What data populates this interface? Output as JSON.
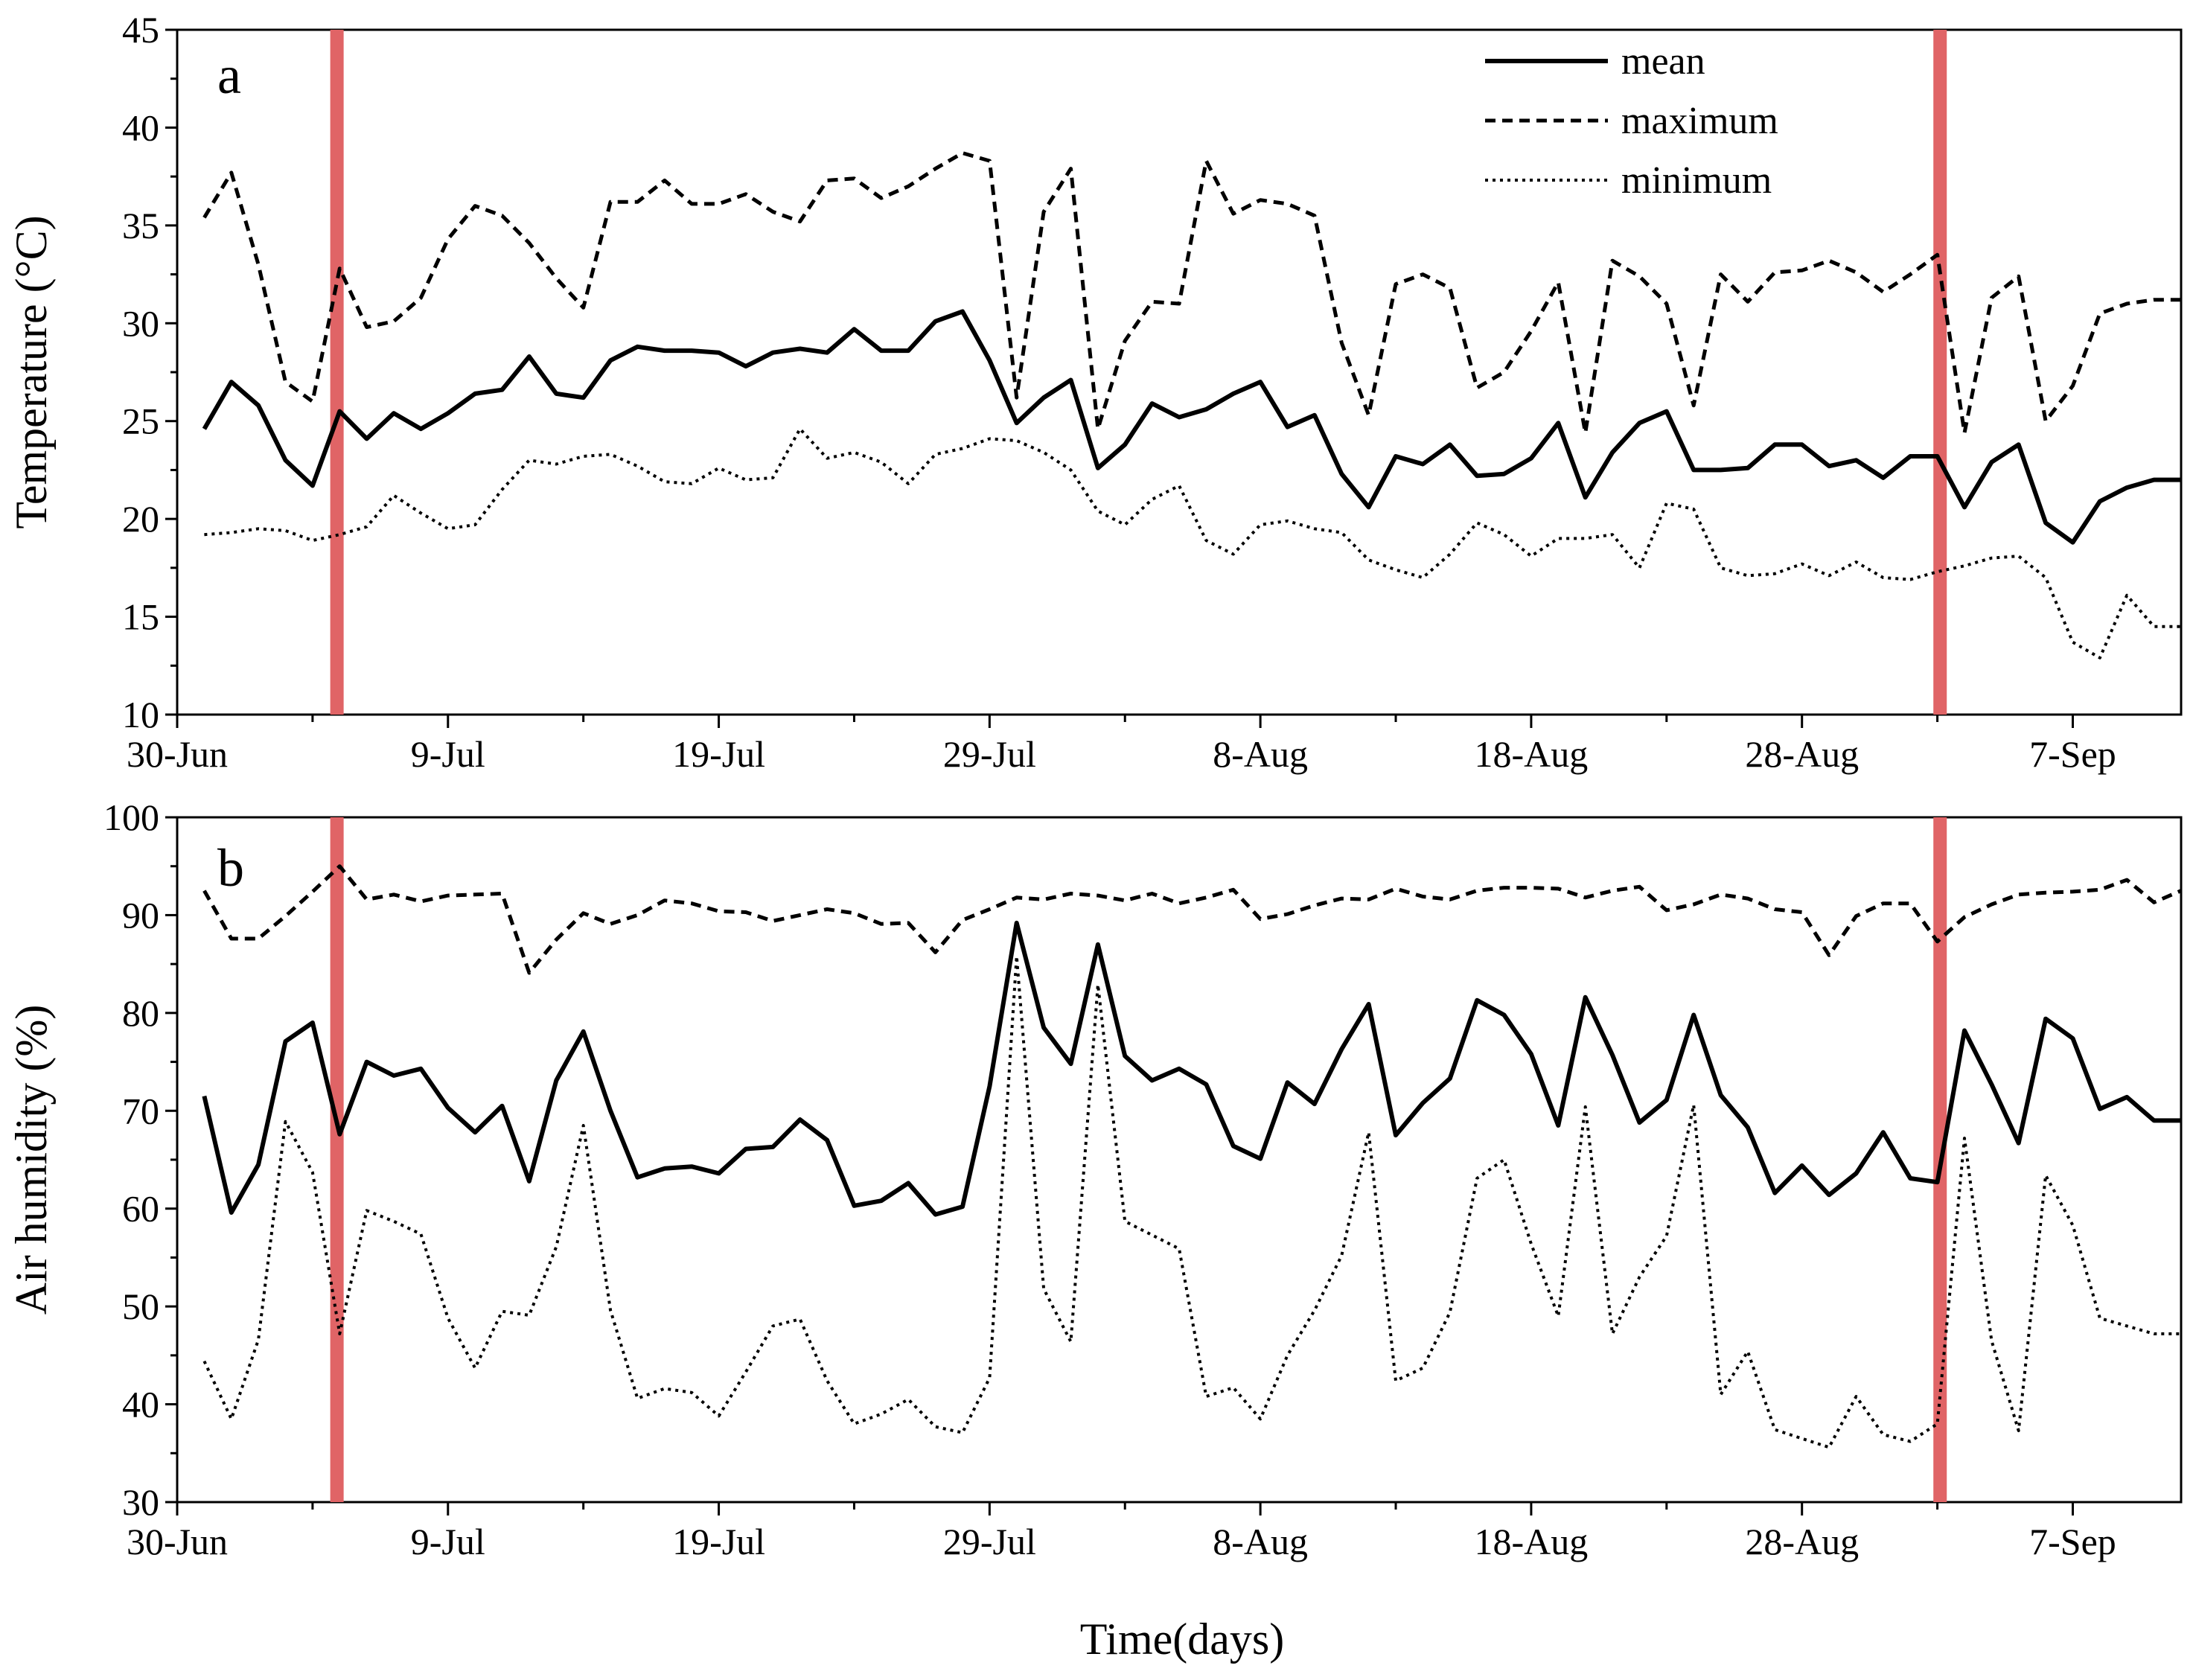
{
  "chart_data": [
    {
      "type": "line",
      "panel_label": "a",
      "ylabel": "Temperature (°C)",
      "xlabel": "",
      "ylim": [
        10,
        45
      ],
      "yticks": [
        "10",
        "15",
        "20",
        "25",
        "30",
        "35",
        "40",
        "45"
      ],
      "xlim": [
        0,
        74
      ],
      "xticks": [
        {
          "day": 0,
          "label": "30-Jun"
        },
        {
          "day": 10,
          "label": "9-Jul"
        },
        {
          "day": 20,
          "label": "19-Jul"
        },
        {
          "day": 30,
          "label": "29-Jul"
        },
        {
          "day": 40,
          "label": "8-Aug"
        },
        {
          "day": 50,
          "label": "18-Aug"
        },
        {
          "day": 60,
          "label": "28-Aug"
        },
        {
          "day": 70,
          "label": "7-Sep"
        }
      ],
      "markers": {
        "days": [
          5.9,
          65.1
        ],
        "color": "#e06466"
      },
      "x": [
        1,
        2,
        3,
        4,
        5,
        6,
        7,
        8,
        9,
        10,
        11,
        12,
        13,
        14,
        15,
        16,
        17,
        18,
        19,
        20,
        21,
        22,
        23,
        24,
        25,
        26,
        27,
        28,
        29,
        30,
        31,
        32,
        33,
        34,
        35,
        36,
        37,
        38,
        39,
        40,
        41,
        42,
        43,
        44,
        45,
        46,
        47,
        48,
        49,
        50,
        51,
        52,
        53,
        54,
        55,
        56,
        57,
        58,
        59,
        60,
        61,
        62,
        63,
        64,
        65,
        66,
        67,
        68,
        69,
        70,
        71,
        72,
        73,
        74
      ],
      "series": [
        {
          "name": "mean",
          "style": "solid",
          "values": [
            24.6,
            27.0,
            25.8,
            23.0,
            21.7,
            25.5,
            24.1,
            25.4,
            24.6,
            25.4,
            26.4,
            26.6,
            28.3,
            26.4,
            26.2,
            28.1,
            28.8,
            28.6,
            28.6,
            28.5,
            27.8,
            28.5,
            28.7,
            28.5,
            29.7,
            28.6,
            28.6,
            30.1,
            30.6,
            28.1,
            24.9,
            26.2,
            27.1,
            22.6,
            23.8,
            25.9,
            25.2,
            25.6,
            26.4,
            27.0,
            24.7,
            25.3,
            22.3,
            20.6,
            23.2,
            22.8,
            23.8,
            22.2,
            22.3,
            23.1,
            24.9,
            21.1,
            23.4,
            24.9,
            25.5,
            22.5,
            22.5,
            22.6,
            23.8,
            23.8,
            22.7,
            23.0,
            22.1,
            23.2,
            23.2,
            20.6,
            22.9,
            23.8,
            19.8,
            18.8,
            20.9,
            21.6,
            22.0,
            22.0
          ]
        },
        {
          "name": "maximum",
          "style": "dashed",
          "values": [
            35.4,
            37.7,
            33.0,
            27.0,
            26.0,
            32.8,
            29.8,
            30.1,
            31.3,
            34.3,
            36.0,
            35.5,
            34.1,
            32.3,
            30.8,
            36.2,
            36.2,
            37.3,
            36.1,
            36.1,
            36.6,
            35.7,
            35.2,
            37.3,
            37.4,
            36.4,
            37.0,
            37.9,
            38.7,
            38.3,
            26.2,
            35.7,
            37.9,
            24.6,
            29.1,
            31.1,
            31.0,
            38.3,
            35.6,
            36.3,
            36.1,
            35.5,
            29.0,
            25.3,
            32.0,
            32.5,
            31.8,
            26.7,
            27.5,
            29.6,
            32.1,
            24.4,
            33.2,
            32.4,
            31.0,
            25.8,
            32.5,
            31.1,
            32.6,
            32.7,
            33.2,
            32.6,
            31.6,
            32.5,
            33.5,
            24.4,
            31.3,
            32.4,
            25.0,
            26.8,
            30.5,
            31.0,
            31.2,
            31.2
          ]
        },
        {
          "name": "minimum",
          "style": "dotted",
          "values": [
            19.2,
            19.3,
            19.5,
            19.4,
            18.9,
            19.2,
            19.6,
            21.2,
            20.3,
            19.5,
            19.7,
            21.5,
            23.0,
            22.8,
            23.2,
            23.3,
            22.7,
            21.9,
            21.8,
            22.6,
            22.0,
            22.1,
            24.6,
            23.1,
            23.4,
            22.9,
            21.8,
            23.3,
            23.6,
            24.1,
            24.0,
            23.4,
            22.5,
            20.4,
            19.7,
            21.0,
            21.7,
            18.9,
            18.2,
            19.7,
            19.9,
            19.5,
            19.3,
            17.9,
            17.4,
            17.0,
            18.2,
            19.8,
            19.2,
            18.1,
            19.0,
            19.0,
            19.2,
            17.5,
            20.8,
            20.5,
            17.5,
            17.1,
            17.2,
            17.7,
            17.1,
            17.8,
            17.0,
            16.9,
            17.3,
            17.6,
            18.0,
            18.1,
            17.0,
            13.7,
            12.9,
            16.1,
            14.5,
            14.5
          ]
        }
      ],
      "legend": {
        "placement": "top-right",
        "entries": [
          {
            "label": "mean",
            "style": "solid"
          },
          {
            "label": "maximum",
            "style": "dashed"
          },
          {
            "label": "minimum",
            "style": "dotted"
          }
        ]
      }
    },
    {
      "type": "line",
      "panel_label": "b",
      "ylabel": "Air humidity (%)",
      "xlabel": "Time(days)",
      "ylim": [
        30,
        100
      ],
      "yticks": [
        "30",
        "40",
        "50",
        "60",
        "70",
        "80",
        "90",
        "100"
      ],
      "xlim": [
        0,
        74
      ],
      "xticks": [
        {
          "day": 0,
          "label": "30-Jun"
        },
        {
          "day": 10,
          "label": "9-Jul"
        },
        {
          "day": 20,
          "label": "19-Jul"
        },
        {
          "day": 30,
          "label": "29-Jul"
        },
        {
          "day": 40,
          "label": "8-Aug"
        },
        {
          "day": 50,
          "label": "18-Aug"
        },
        {
          "day": 60,
          "label": "28-Aug"
        },
        {
          "day": 70,
          "label": "7-Sep"
        }
      ],
      "markers": {
        "days": [
          5.9,
          65.1
        ],
        "color": "#e06466"
      },
      "x": [
        1,
        2,
        3,
        4,
        5,
        6,
        7,
        8,
        9,
        10,
        11,
        12,
        13,
        14,
        15,
        16,
        17,
        18,
        19,
        20,
        21,
        22,
        23,
        24,
        25,
        26,
        27,
        28,
        29,
        30,
        31,
        32,
        33,
        34,
        35,
        36,
        37,
        38,
        39,
        40,
        41,
        42,
        43,
        44,
        45,
        46,
        47,
        48,
        49,
        50,
        51,
        52,
        53,
        54,
        55,
        56,
        57,
        58,
        59,
        60,
        61,
        62,
        63,
        64,
        65,
        66,
        67,
        68,
        69,
        70,
        71,
        72,
        73,
        74
      ],
      "series": [
        {
          "name": "mean",
          "style": "solid",
          "values": [
            71.5,
            59.6,
            64.5,
            77.1,
            79.0,
            67.6,
            75.0,
            73.6,
            74.3,
            70.3,
            67.8,
            70.5,
            62.8,
            73.1,
            78.1,
            70.0,
            63.2,
            64.1,
            64.3,
            63.6,
            66.1,
            66.3,
            69.1,
            67.0,
            60.3,
            60.8,
            62.6,
            59.4,
            60.2,
            72.5,
            89.2,
            78.5,
            74.8,
            87.0,
            75.6,
            73.1,
            74.3,
            72.7,
            66.4,
            65.1,
            72.9,
            70.7,
            76.3,
            80.9,
            67.5,
            70.8,
            73.3,
            81.3,
            79.8,
            75.8,
            68.5,
            81.6,
            75.7,
            68.8,
            71.1,
            79.8,
            71.6,
            68.3,
            61.6,
            64.4,
            61.4,
            63.6,
            67.8,
            63.1,
            62.7,
            78.2,
            72.7,
            66.7,
            79.4,
            77.4,
            70.2,
            71.4,
            69.0,
            69.0
          ]
        },
        {
          "name": "maximum",
          "style": "dashed",
          "values": [
            92.5,
            87.6,
            87.6,
            89.9,
            92.4,
            95.0,
            91.6,
            92.1,
            91.4,
            92.0,
            92.1,
            92.2,
            84.1,
            87.5,
            90.2,
            89.1,
            90.0,
            91.5,
            91.2,
            90.4,
            90.3,
            89.4,
            90.0,
            90.6,
            90.2,
            89.1,
            89.2,
            86.2,
            89.5,
            90.6,
            91.8,
            91.6,
            92.2,
            92.0,
            91.5,
            92.2,
            91.2,
            91.8,
            92.6,
            89.6,
            90.1,
            91.0,
            91.7,
            91.6,
            92.7,
            91.9,
            91.6,
            92.5,
            92.8,
            92.8,
            92.7,
            91.8,
            92.5,
            92.9,
            90.5,
            91.1,
            92.1,
            91.7,
            90.6,
            90.3,
            85.9,
            89.9,
            91.2,
            91.2,
            87.3,
            89.8,
            91.1,
            92.1,
            92.3,
            92.4,
            92.6,
            93.6,
            91.3,
            92.5
          ]
        },
        {
          "name": "minimum",
          "style": "dotted",
          "values": [
            44.4,
            38.5,
            46.6,
            68.9,
            63.7,
            47.2,
            59.8,
            58.7,
            57.4,
            48.8,
            43.7,
            49.5,
            49.1,
            56.1,
            68.5,
            49.6,
            40.6,
            41.6,
            41.2,
            38.8,
            43.3,
            48.0,
            48.7,
            42.4,
            38.0,
            39.0,
            40.5,
            37.7,
            37.1,
            42.7,
            85.8,
            51.8,
            46.4,
            82.9,
            58.7,
            57.3,
            55.9,
            40.8,
            41.7,
            38.5,
            45.0,
            49.6,
            55.2,
            67.8,
            42.4,
            43.7,
            49.4,
            63.1,
            65.0,
            56.4,
            49.0,
            70.4,
            47.2,
            53.0,
            57.2,
            70.6,
            41.0,
            45.4,
            37.4,
            36.5,
            35.6,
            40.8,
            36.9,
            36.2,
            38.0,
            67.2,
            46.5,
            37.3,
            63.4,
            58.3,
            48.8,
            48.0,
            47.2,
            47.2
          ]
        }
      ]
    }
  ]
}
